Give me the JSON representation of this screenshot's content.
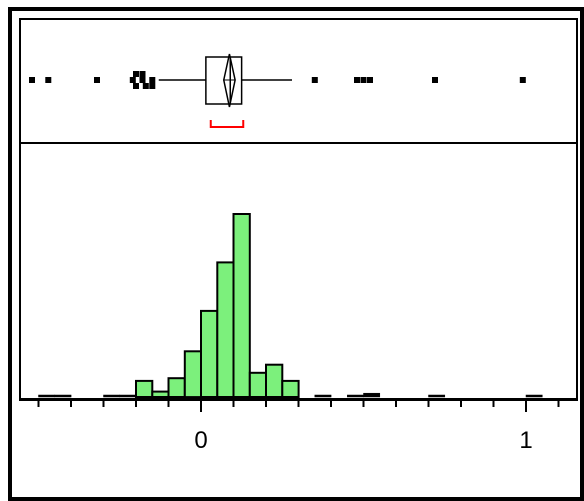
{
  "chart_data": {
    "type": "bar",
    "subtype": "histogram-with-outlier-boxplot",
    "x_axis": {
      "xlim": [
        -0.5,
        1.15
      ],
      "tick_labels": [
        {
          "value": 0,
          "label": "0"
        },
        {
          "value": 1,
          "label": "1"
        }
      ],
      "minor_tick_step": 0.1
    },
    "histogram": {
      "bin_width": 0.05,
      "fill_color": "#7CF07C",
      "bins": [
        {
          "x0": -0.5,
          "x1": -0.45,
          "count": 0.3
        },
        {
          "x0": -0.45,
          "x1": -0.4,
          "count": 0.3
        },
        {
          "x0": -0.3,
          "x1": -0.25,
          "count": 0.3
        },
        {
          "x0": -0.25,
          "x1": -0.2,
          "count": 0.3
        },
        {
          "x0": -0.2,
          "x1": -0.15,
          "count": 3
        },
        {
          "x0": -0.15,
          "x1": -0.1,
          "count": 1
        },
        {
          "x0": -0.1,
          "x1": -0.05,
          "count": 3.5
        },
        {
          "x0": -0.05,
          "x1": 0.0,
          "count": 8.5
        },
        {
          "x0": 0.0,
          "x1": 0.05,
          "count": 16
        },
        {
          "x0": 0.05,
          "x1": 0.1,
          "count": 25
        },
        {
          "x0": 0.1,
          "x1": 0.15,
          "count": 34
        },
        {
          "x0": 0.15,
          "x1": 0.2,
          "count": 4.5
        },
        {
          "x0": 0.2,
          "x1": 0.25,
          "count": 6
        },
        {
          "x0": 0.25,
          "x1": 0.3,
          "count": 3
        },
        {
          "x0": 0.35,
          "x1": 0.4,
          "count": 0.3
        },
        {
          "x0": 0.45,
          "x1": 0.5,
          "count": 0.3
        },
        {
          "x0": 0.5,
          "x1": 0.55,
          "count": 0.7
        },
        {
          "x0": 0.7,
          "x1": 0.75,
          "count": 0.3
        },
        {
          "x0": 1.0,
          "x1": 1.05,
          "count": 0.3
        }
      ],
      "ylim": [
        0,
        38
      ]
    },
    "boxplot": {
      "q1": 0.015,
      "median": 0.09,
      "q3": 0.125,
      "mean": 0.08,
      "mean_diamond": [
        0.07,
        0.105
      ],
      "whisker_low": -0.13,
      "whisker_high": 0.28,
      "shortest_half": [
        0.03,
        0.13
      ],
      "shortest_half_color": "#FF0000",
      "outliers": [
        {
          "x": -0.52,
          "row": 0
        },
        {
          "x": -0.47,
          "row": 0
        },
        {
          "x": -0.32,
          "row": 0
        },
        {
          "x": -0.21,
          "row": 0
        },
        {
          "x": -0.2,
          "row": -1
        },
        {
          "x": -0.2,
          "row": 1
        },
        {
          "x": -0.18,
          "row": 0
        },
        {
          "x": -0.18,
          "row": -1
        },
        {
          "x": -0.17,
          "row": 1
        },
        {
          "x": -0.15,
          "row": 0
        },
        {
          "x": -0.15,
          "row": 1
        },
        {
          "x": 0.35,
          "row": 0
        },
        {
          "x": 0.48,
          "row": 0
        },
        {
          "x": 0.5,
          "row": 0
        },
        {
          "x": 0.52,
          "row": 0
        },
        {
          "x": 0.72,
          "row": 0
        },
        {
          "x": 0.99,
          "row": 0
        }
      ]
    }
  }
}
